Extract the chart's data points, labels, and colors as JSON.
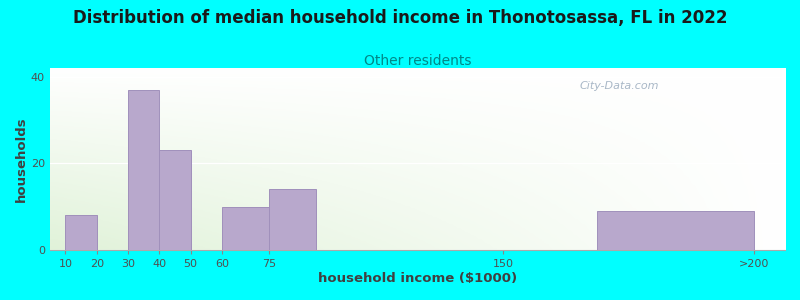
{
  "title": "Distribution of median household income in Thonotosassa, FL in 2022",
  "subtitle": "Other residents",
  "xlabel": "household income ($1000)",
  "ylabel": "households",
  "background_outer": "#00FFFF",
  "bar_color": "#b8a8cc",
  "bar_edge_color": "#a090bb",
  "title_fontsize": 12,
  "subtitle_fontsize": 10,
  "subtitle_color": "#008888",
  "watermark": "City-Data.com",
  "bar_lefts": [
    10,
    20,
    30,
    40,
    50,
    60,
    75,
    180
  ],
  "bar_rights": [
    20,
    30,
    40,
    50,
    60,
    75,
    90,
    230
  ],
  "values": [
    8,
    0,
    37,
    23,
    0,
    10,
    14,
    9
  ],
  "tick_positions": [
    10,
    20,
    30,
    40,
    50,
    60,
    75,
    150,
    230
  ],
  "tick_labels": [
    "10",
    "20",
    "30",
    "40",
    "50",
    "60",
    "75",
    "150",
    ">200"
  ],
  "xlim": [
    5,
    240
  ],
  "ylim": [
    0,
    42
  ],
  "yticks": [
    0,
    20,
    40
  ]
}
